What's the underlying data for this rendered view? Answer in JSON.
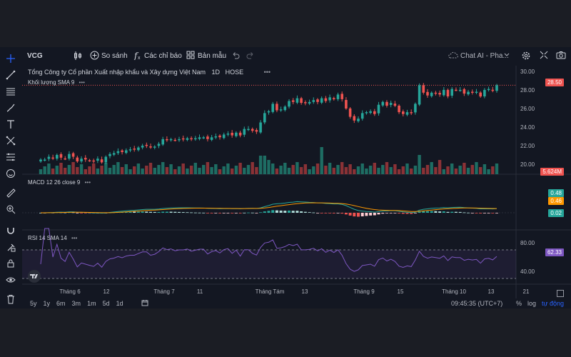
{
  "toolbar": {
    "symbol": "VCG",
    "compare": "So sánh",
    "indicators": "Các chỉ báo",
    "templates": "Bản mẫu",
    "chat": "Chat AI - Pha..."
  },
  "legend": {
    "company": "Tổng Công ty Cổ phần Xuất nhập khẩu và Xây dựng Việt Nam",
    "interval": "1D",
    "exchange": "HOSE",
    "volume_label": "Khối lượng SMA 9",
    "macd_label": "MACD 12 26 close 9",
    "rsi_label": "RSI 14 SMA 14"
  },
  "price_axis": {
    "ticks": [
      "30.00",
      "28.00",
      "26.00",
      "24.00",
      "22.00",
      "20.00"
    ],
    "last_price": "28.50",
    "volume_badge": "5.624M"
  },
  "macd_axis": {
    "macd": "0.48",
    "signal": "0.46",
    "hist": "0.02"
  },
  "rsi_axis": {
    "ticks": [
      "80.00",
      "40.00"
    ],
    "value": "62.33"
  },
  "time_axis": [
    "Tháng 6",
    "12",
    "Tháng 7",
    "11",
    "Tháng Tám",
    "13",
    "Tháng 9",
    "15",
    "Tháng 10",
    "13",
    "21"
  ],
  "ranges": [
    "5y",
    "1y",
    "6m",
    "3m",
    "1m",
    "5d",
    "1d"
  ],
  "status": {
    "time": "09:45:35 (UTC+7)",
    "percent": "%",
    "log": "log",
    "auto": "tự động"
  },
  "colors": {
    "up": "#26a69a",
    "down": "#ef5350",
    "macd": "#26a69a",
    "signal": "#ff9800",
    "rsi": "#7e57c2"
  },
  "chart_data": {
    "type": "candlestick",
    "title": "Tổng Công ty Cổ phần Xuất nhập khẩu và Xây dựng Việt Nam",
    "close": [
      20.5,
      20.5,
      20.8,
      20.6,
      21.0,
      20.7,
      20.6,
      21.1,
      20.8,
      20.3,
      20.6,
      20.5,
      20.4,
      20.3,
      20.6,
      20.2,
      20.8,
      21.1,
      21.2,
      21.4,
      21.3,
      21.5,
      21.6,
      21.6,
      21.8,
      22.0,
      22.0,
      21.8,
      21.9,
      22.2,
      22.7,
      22.6,
      22.7,
      22.6,
      22.7,
      22.7,
      22.8,
      22.7,
      22.8,
      22.9,
      22.9,
      22.7,
      22.9,
      23.0,
      22.9,
      23.2,
      23.3,
      23.1,
      23.4,
      23.1,
      23.8,
      23.8,
      23.6,
      23.5,
      24.5,
      25.5,
      25.7,
      26.5,
      25.8,
      25.9,
      26.2,
      26.8,
      26.7,
      27.1,
      26.6,
      26.6,
      26.7,
      26.9,
      26.7,
      27.1,
      26.8,
      27.2,
      27.0,
      27.5,
      27.0,
      26.0,
      25.1,
      24.7,
      24.9,
      25.5,
      25.6,
      25.7,
      25.4,
      26.4,
      26.7,
      26.3,
      26.6,
      26.3,
      25.6,
      25.4,
      25.6,
      25.5,
      26.5,
      28.5,
      27.7,
      27.4,
      27.7,
      27.6,
      27.5,
      28.0,
      27.3,
      28.1,
      28.0,
      28.0,
      27.6,
      27.8,
      27.7,
      27.8,
      27.3,
      28.0,
      28.1,
      27.9,
      28.5
    ],
    "last": 28.5,
    "ylim": [
      19,
      30.3
    ],
    "volume_last": "5.624M",
    "macd_last": 0.48,
    "signal_last": 0.46,
    "hist_last": 0.02,
    "rsi_last": 62.33,
    "rsi_ylim": [
      25,
      95
    ]
  }
}
